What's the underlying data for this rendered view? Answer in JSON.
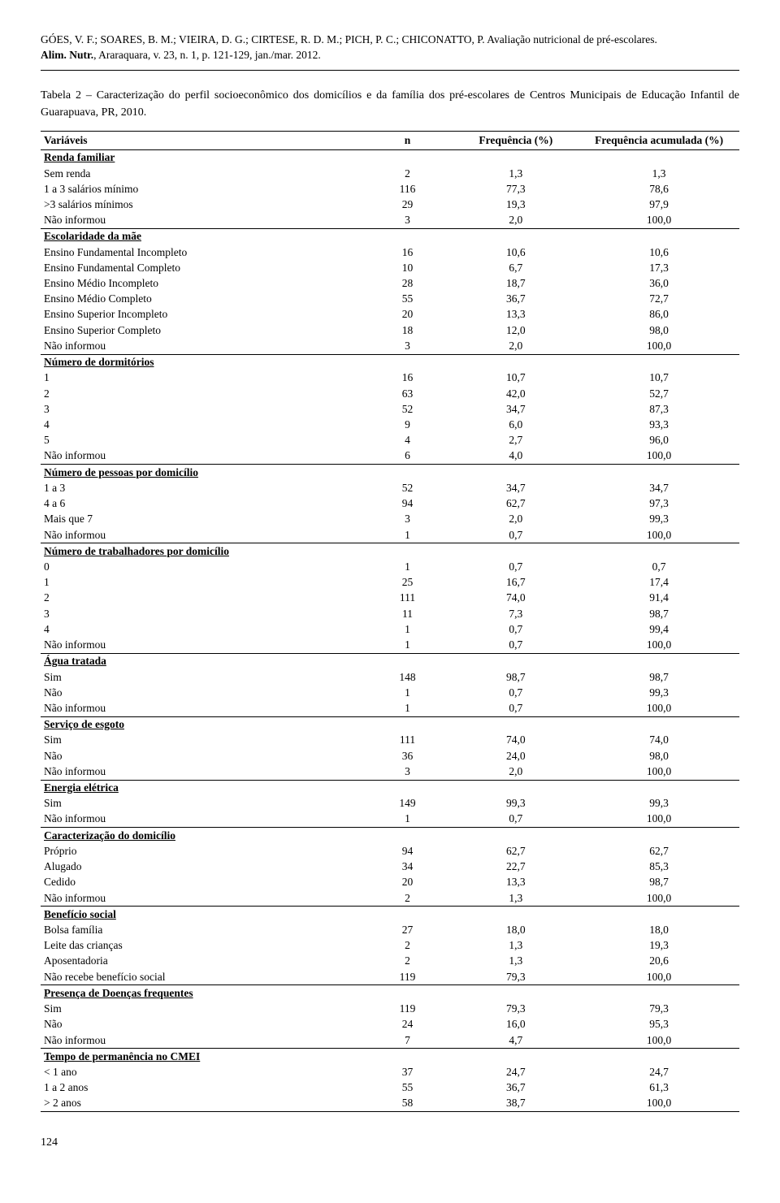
{
  "header": {
    "authors": "GÓES, V. F.; SOARES, B. M.; VIEIRA, D. G.; CIRTESE, R. D. M.; PICH, P. C.; CHICONATTO, P. Avaliação nutricional de pré-escolares.",
    "journal_prefix": "Alim. Nutr.",
    "journal_rest": ", Araraquara, v. 23, n. 1, p. 121-129, jan./mar. 2012."
  },
  "table_caption": "Tabela 2 – Caracterização do perfil socioeconômico dos domicílios e da família dos pré-escolares de Centros Municipais de Educação Infantil de Guarapuava, PR, 2010.",
  "columns": [
    "Variáveis",
    "n",
    "Frequência (%)",
    "Frequência acumulada (%)"
  ],
  "sections": [
    {
      "title": "Renda familiar",
      "rows": [
        [
          "Sem renda",
          "2",
          "1,3",
          "1,3"
        ],
        [
          "1 a 3 salários mínimo",
          "116",
          "77,3",
          "78,6"
        ],
        [
          ">3 salários mínimos",
          "29",
          "19,3",
          "97,9"
        ],
        [
          "Não informou",
          "3",
          "2,0",
          "100,0"
        ]
      ]
    },
    {
      "title": "Escolaridade da mãe",
      "rows": [
        [
          "Ensino Fundamental Incompleto",
          "16",
          "10,6",
          "10,6"
        ],
        [
          "Ensino Fundamental Completo",
          "10",
          "6,7",
          "17,3"
        ],
        [
          "Ensino Médio Incompleto",
          "28",
          "18,7",
          "36,0"
        ],
        [
          "Ensino Médio Completo",
          "55",
          "36,7",
          "72,7"
        ],
        [
          "Ensino Superior Incompleto",
          "20",
          "13,3",
          "86,0"
        ],
        [
          "Ensino Superior Completo",
          "18",
          "12,0",
          "98,0"
        ],
        [
          "Não informou",
          "3",
          "2,0",
          "100,0"
        ]
      ]
    },
    {
      "title": "Número de dormitórios",
      "rows": [
        [
          "1",
          "16",
          "10,7",
          "10,7"
        ],
        [
          "2",
          "63",
          "42,0",
          "52,7"
        ],
        [
          "3",
          "52",
          "34,7",
          "87,3"
        ],
        [
          "4",
          "9",
          "6,0",
          "93,3"
        ],
        [
          "5",
          "4",
          "2,7",
          "96,0"
        ],
        [
          "Não informou",
          "6",
          "4,0",
          "100,0"
        ]
      ]
    },
    {
      "title": "Número de pessoas por domicílio",
      "rows": [
        [
          "1 a 3",
          "52",
          "34,7",
          "34,7"
        ],
        [
          "4 a 6",
          "94",
          "62,7",
          "97,3"
        ],
        [
          "Mais que 7",
          "3",
          "2,0",
          "99,3"
        ],
        [
          "Não informou",
          "1",
          "0,7",
          "100,0"
        ]
      ]
    },
    {
      "title": "Número de trabalhadores por domicílio",
      "rows": [
        [
          "0",
          "1",
          "0,7",
          "0,7"
        ],
        [
          "1",
          "25",
          "16,7",
          "17,4"
        ],
        [
          "2",
          "111",
          "74,0",
          "91,4"
        ],
        [
          "3",
          "11",
          "7,3",
          "98,7"
        ],
        [
          "4",
          "1",
          "0,7",
          "99,4"
        ],
        [
          "Não informou",
          "1",
          "0,7",
          "100,0"
        ]
      ]
    },
    {
      "title": "Água tratada",
      "rows": [
        [
          "Sim",
          "148",
          "98,7",
          "98,7"
        ],
        [
          "Não",
          "1",
          "0,7",
          "99,3"
        ],
        [
          "Não informou",
          "1",
          "0,7",
          "100,0"
        ]
      ]
    },
    {
      "title": "Serviço de esgoto",
      "rows": [
        [
          "Sim",
          "111",
          "74,0",
          "74,0"
        ],
        [
          "Não",
          "36",
          "24,0",
          "98,0"
        ],
        [
          "Não informou",
          "3",
          "2,0",
          "100,0"
        ]
      ]
    },
    {
      "title": "Energia elétrica",
      "rows": [
        [
          "Sim",
          "149",
          "99,3",
          "99,3"
        ],
        [
          "Não informou",
          "1",
          "0,7",
          "100,0"
        ]
      ]
    },
    {
      "title": "Caracterização do domicílio",
      "rows": [
        [
          "Próprio",
          "94",
          "62,7",
          "62,7"
        ],
        [
          "Alugado",
          "34",
          "22,7",
          "85,3"
        ],
        [
          "Cedido",
          "20",
          "13,3",
          "98,7"
        ],
        [
          "Não informou",
          "2",
          "1,3",
          "100,0"
        ]
      ]
    },
    {
      "title": "Benefício social",
      "rows": [
        [
          "Bolsa família",
          "27",
          "18,0",
          "18,0"
        ],
        [
          "Leite das crianças",
          "2",
          "1,3",
          "19,3"
        ],
        [
          "Aposentadoria",
          "2",
          "1,3",
          "20,6"
        ],
        [
          "Não recebe benefício social",
          "119",
          "79,3",
          "100,0"
        ]
      ]
    },
    {
      "title": "Presença de Doenças frequentes",
      "rows": [
        [
          "Sim",
          "119",
          "79,3",
          "79,3"
        ],
        [
          "Não",
          "24",
          "16,0",
          "95,3"
        ],
        [
          "Não informou",
          "7",
          "4,7",
          "100,0"
        ]
      ]
    },
    {
      "title": "Tempo de permanência no CMEI",
      "rows": [
        [
          "< 1 ano",
          "37",
          "24,7",
          "24,7"
        ],
        [
          "1 a 2 anos",
          "55",
          "36,7",
          "61,3"
        ],
        [
          "> 2 anos",
          "58",
          "38,7",
          "100,0"
        ]
      ]
    }
  ],
  "page_number": "124"
}
